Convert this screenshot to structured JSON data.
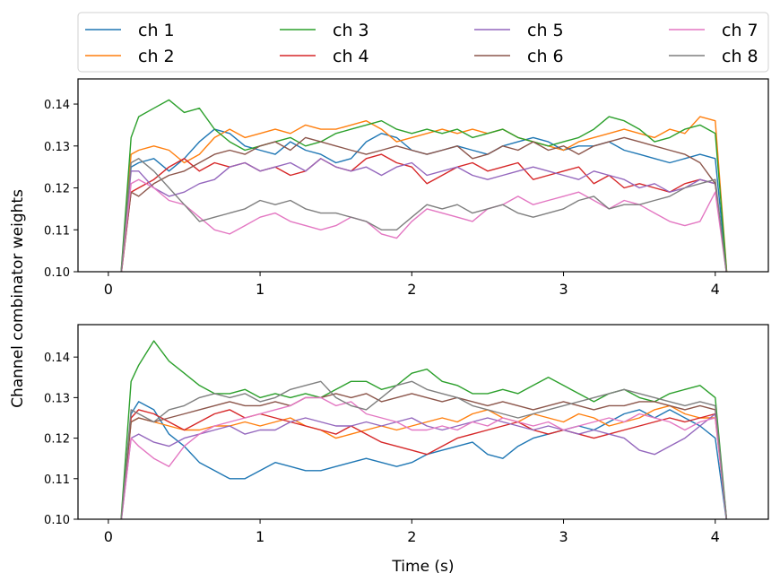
{
  "chart_data": {
    "type": "line",
    "ylabel": "Channel combinator weights",
    "xlabel": "Time (s)",
    "legend": {
      "placement": "top",
      "columns": 4,
      "entries": [
        "ch 1",
        "ch 2",
        "ch 3",
        "ch 4",
        "ch 5",
        "ch 6",
        "ch 7",
        "ch 8"
      ]
    },
    "colors": [
      "#1f77b4",
      "#ff7f0e",
      "#2ca02c",
      "#d62728",
      "#9467bd",
      "#8c564b",
      "#e377c2",
      "#7f7f7f"
    ],
    "panels": [
      {
        "xlim": [
          -0.2,
          4.35
        ],
        "ylim": [
          0.1,
          0.146
        ],
        "xticks": [
          0,
          1,
          2,
          3,
          4
        ],
        "xtick_labels": [
          "0",
          "1",
          "2",
          "3",
          "4"
        ],
        "yticks": [
          0.1,
          0.11,
          0.12,
          0.13,
          0.14
        ],
        "ytick_labels": [
          "0.10",
          "0.11",
          "0.12",
          "0.13",
          "0.14"
        ],
        "x": [
          0.08,
          0.15,
          0.2,
          0.3,
          0.4,
          0.5,
          0.6,
          0.7,
          0.8,
          0.9,
          1.0,
          1.1,
          1.2,
          1.3,
          1.4,
          1.5,
          1.6,
          1.7,
          1.8,
          1.9,
          2.0,
          2.1,
          2.2,
          2.3,
          2.4,
          2.5,
          2.6,
          2.7,
          2.8,
          2.9,
          3.0,
          3.1,
          3.2,
          3.3,
          3.4,
          3.5,
          3.6,
          3.7,
          3.8,
          3.9,
          4.0,
          4.08
        ],
        "series": [
          {
            "name": "ch 1",
            "values": [
              0.098,
              0.125,
              0.126,
              0.127,
              0.124,
              0.127,
              0.131,
              0.134,
              0.133,
              0.13,
              0.129,
              0.128,
              0.131,
              0.129,
              0.128,
              0.126,
              0.127,
              0.131,
              0.133,
              0.132,
              0.129,
              0.128,
              0.129,
              0.13,
              0.129,
              0.128,
              0.13,
              0.131,
              0.132,
              0.131,
              0.129,
              0.13,
              0.13,
              0.131,
              0.129,
              0.128,
              0.127,
              0.126,
              0.127,
              0.128,
              0.127,
              0.098
            ]
          },
          {
            "name": "ch 2",
            "values": [
              0.098,
              0.128,
              0.129,
              0.13,
              0.129,
              0.126,
              0.128,
              0.132,
              0.134,
              0.132,
              0.133,
              0.134,
              0.133,
              0.135,
              0.134,
              0.134,
              0.135,
              0.136,
              0.134,
              0.131,
              0.132,
              0.133,
              0.134,
              0.133,
              0.134,
              0.133,
              0.134,
              0.132,
              0.131,
              0.13,
              0.129,
              0.131,
              0.132,
              0.133,
              0.134,
              0.133,
              0.132,
              0.134,
              0.133,
              0.137,
              0.136,
              0.098
            ]
          },
          {
            "name": "ch 3",
            "values": [
              0.098,
              0.132,
              0.137,
              0.139,
              0.141,
              0.138,
              0.139,
              0.134,
              0.131,
              0.129,
              0.13,
              0.131,
              0.132,
              0.13,
              0.131,
              0.133,
              0.134,
              0.135,
              0.136,
              0.134,
              0.133,
              0.134,
              0.133,
              0.134,
              0.132,
              0.133,
              0.134,
              0.132,
              0.131,
              0.13,
              0.131,
              0.132,
              0.134,
              0.137,
              0.136,
              0.134,
              0.131,
              0.132,
              0.134,
              0.135,
              0.133,
              0.098
            ]
          },
          {
            "name": "ch 4",
            "values": [
              0.098,
              0.119,
              0.12,
              0.122,
              0.125,
              0.127,
              0.124,
              0.126,
              0.125,
              0.126,
              0.124,
              0.125,
              0.123,
              0.124,
              0.127,
              0.125,
              0.124,
              0.127,
              0.128,
              0.126,
              0.125,
              0.121,
              0.123,
              0.125,
              0.126,
              0.124,
              0.125,
              0.126,
              0.122,
              0.123,
              0.124,
              0.125,
              0.121,
              0.123,
              0.12,
              0.121,
              0.12,
              0.119,
              0.121,
              0.122,
              0.121,
              0.098
            ]
          },
          {
            "name": "ch 5",
            "values": [
              0.098,
              0.124,
              0.124,
              0.12,
              0.118,
              0.119,
              0.121,
              0.122,
              0.125,
              0.126,
              0.124,
              0.125,
              0.126,
              0.124,
              0.127,
              0.125,
              0.124,
              0.125,
              0.123,
              0.125,
              0.126,
              0.123,
              0.124,
              0.125,
              0.123,
              0.122,
              0.123,
              0.124,
              0.125,
              0.124,
              0.123,
              0.122,
              0.124,
              0.123,
              0.122,
              0.12,
              0.121,
              0.119,
              0.12,
              0.122,
              0.121,
              0.098
            ]
          },
          {
            "name": "ch 6",
            "values": [
              0.098,
              0.119,
              0.118,
              0.121,
              0.123,
              0.124,
              0.126,
              0.128,
              0.129,
              0.128,
              0.13,
              0.131,
              0.129,
              0.132,
              0.131,
              0.13,
              0.129,
              0.128,
              0.129,
              0.13,
              0.129,
              0.128,
              0.129,
              0.13,
              0.127,
              0.128,
              0.13,
              0.129,
              0.131,
              0.129,
              0.13,
              0.128,
              0.13,
              0.131,
              0.132,
              0.131,
              0.13,
              0.129,
              0.128,
              0.126,
              0.121,
              0.098
            ]
          },
          {
            "name": "ch 7",
            "values": [
              0.098,
              0.121,
              0.122,
              0.12,
              0.117,
              0.116,
              0.113,
              0.11,
              0.109,
              0.111,
              0.113,
              0.114,
              0.112,
              0.111,
              0.11,
              0.111,
              0.113,
              0.112,
              0.109,
              0.108,
              0.112,
              0.115,
              0.114,
              0.113,
              0.112,
              0.115,
              0.116,
              0.118,
              0.116,
              0.117,
              0.118,
              0.119,
              0.117,
              0.115,
              0.117,
              0.116,
              0.114,
              0.112,
              0.111,
              0.112,
              0.119,
              0.098
            ]
          },
          {
            "name": "ch 8",
            "values": [
              0.098,
              0.126,
              0.127,
              0.124,
              0.12,
              0.116,
              0.112,
              0.113,
              0.114,
              0.115,
              0.117,
              0.116,
              0.117,
              0.115,
              0.114,
              0.114,
              0.113,
              0.112,
              0.11,
              0.11,
              0.113,
              0.116,
              0.115,
              0.116,
              0.114,
              0.115,
              0.116,
              0.114,
              0.113,
              0.114,
              0.115,
              0.117,
              0.118,
              0.115,
              0.116,
              0.116,
              0.117,
              0.118,
              0.12,
              0.121,
              0.122,
              0.098
            ]
          }
        ]
      },
      {
        "xlim": [
          -0.2,
          4.35
        ],
        "ylim": [
          0.1,
          0.148
        ],
        "xticks": [
          0,
          1,
          2,
          3,
          4
        ],
        "xtick_labels": [
          "0",
          "1",
          "2",
          "3",
          "4"
        ],
        "yticks": [
          0.1,
          0.11,
          0.12,
          0.13,
          0.14
        ],
        "ytick_labels": [
          "0.10",
          "0.11",
          "0.12",
          "0.13",
          "0.14"
        ],
        "x": [
          0.08,
          0.15,
          0.2,
          0.3,
          0.4,
          0.5,
          0.6,
          0.7,
          0.8,
          0.9,
          1.0,
          1.1,
          1.2,
          1.3,
          1.4,
          1.5,
          1.6,
          1.7,
          1.8,
          1.9,
          2.0,
          2.1,
          2.2,
          2.3,
          2.4,
          2.5,
          2.6,
          2.7,
          2.8,
          2.9,
          3.0,
          3.1,
          3.2,
          3.3,
          3.4,
          3.5,
          3.6,
          3.7,
          3.8,
          3.9,
          4.0,
          4.08
        ],
        "series": [
          {
            "name": "ch 1",
            "values": [
              0.098,
              0.126,
              0.129,
              0.127,
              0.121,
              0.118,
              0.114,
              0.112,
              0.11,
              0.11,
              0.112,
              0.114,
              0.113,
              0.112,
              0.112,
              0.113,
              0.114,
              0.115,
              0.114,
              0.113,
              0.114,
              0.116,
              0.117,
              0.118,
              0.119,
              0.116,
              0.115,
              0.118,
              0.12,
              0.121,
              0.122,
              0.123,
              0.122,
              0.124,
              0.126,
              0.127,
              0.125,
              0.127,
              0.125,
              0.123,
              0.12,
              0.098
            ]
          },
          {
            "name": "ch 2",
            "values": [
              0.098,
              0.124,
              0.125,
              0.124,
              0.123,
              0.122,
              0.122,
              0.123,
              0.123,
              0.124,
              0.123,
              0.124,
              0.125,
              0.123,
              0.122,
              0.12,
              0.121,
              0.122,
              0.123,
              0.122,
              0.123,
              0.124,
              0.125,
              0.124,
              0.126,
              0.127,
              0.125,
              0.124,
              0.126,
              0.125,
              0.124,
              0.126,
              0.125,
              0.123,
              0.124,
              0.125,
              0.127,
              0.128,
              0.126,
              0.125,
              0.125,
              0.098
            ]
          },
          {
            "name": "ch 3",
            "values": [
              0.098,
              0.134,
              0.138,
              0.144,
              0.139,
              0.136,
              0.133,
              0.131,
              0.131,
              0.132,
              0.13,
              0.131,
              0.13,
              0.131,
              0.13,
              0.132,
              0.134,
              0.134,
              0.132,
              0.133,
              0.136,
              0.137,
              0.134,
              0.133,
              0.131,
              0.131,
              0.132,
              0.131,
              0.133,
              0.135,
              0.133,
              0.131,
              0.129,
              0.131,
              0.132,
              0.13,
              0.129,
              0.131,
              0.132,
              0.133,
              0.13,
              0.098
            ]
          },
          {
            "name": "ch 4",
            "values": [
              0.098,
              0.125,
              0.127,
              0.126,
              0.124,
              0.122,
              0.124,
              0.126,
              0.127,
              0.125,
              0.126,
              0.125,
              0.124,
              0.123,
              0.122,
              0.121,
              0.123,
              0.121,
              0.119,
              0.118,
              0.117,
              0.116,
              0.118,
              0.12,
              0.121,
              0.122,
              0.123,
              0.124,
              0.122,
              0.121,
              0.122,
              0.121,
              0.12,
              0.121,
              0.122,
              0.123,
              0.124,
              0.125,
              0.124,
              0.125,
              0.126,
              0.098
            ]
          },
          {
            "name": "ch 5",
            "values": [
              0.098,
              0.12,
              0.121,
              0.119,
              0.118,
              0.12,
              0.121,
              0.122,
              0.123,
              0.121,
              0.122,
              0.122,
              0.124,
              0.125,
              0.124,
              0.123,
              0.123,
              0.124,
              0.123,
              0.124,
              0.125,
              0.123,
              0.122,
              0.123,
              0.124,
              0.125,
              0.124,
              0.123,
              0.122,
              0.123,
              0.122,
              0.121,
              0.122,
              0.121,
              0.12,
              0.117,
              0.116,
              0.118,
              0.12,
              0.123,
              0.126,
              0.098
            ]
          },
          {
            "name": "ch 6",
            "values": [
              0.098,
              0.124,
              0.125,
              0.124,
              0.125,
              0.126,
              0.127,
              0.128,
              0.129,
              0.128,
              0.128,
              0.129,
              0.128,
              0.13,
              0.13,
              0.131,
              0.13,
              0.131,
              0.129,
              0.13,
              0.131,
              0.13,
              0.129,
              0.13,
              0.129,
              0.128,
              0.129,
              0.128,
              0.127,
              0.128,
              0.129,
              0.128,
              0.127,
              0.128,
              0.128,
              0.129,
              0.129,
              0.128,
              0.127,
              0.128,
              0.127,
              0.098
            ]
          },
          {
            "name": "ch 7",
            "values": [
              0.098,
              0.12,
              0.118,
              0.115,
              0.113,
              0.118,
              0.121,
              0.123,
              0.124,
              0.125,
              0.126,
              0.127,
              0.128,
              0.13,
              0.13,
              0.128,
              0.129,
              0.126,
              0.125,
              0.124,
              0.122,
              0.122,
              0.123,
              0.122,
              0.124,
              0.123,
              0.125,
              0.124,
              0.123,
              0.124,
              0.122,
              0.123,
              0.124,
              0.125,
              0.124,
              0.126,
              0.125,
              0.124,
              0.122,
              0.124,
              0.125,
              0.098
            ]
          },
          {
            "name": "ch 8",
            "values": [
              0.098,
              0.127,
              0.126,
              0.124,
              0.127,
              0.128,
              0.13,
              0.131,
              0.13,
              0.131,
              0.129,
              0.13,
              0.132,
              0.133,
              0.134,
              0.13,
              0.128,
              0.127,
              0.13,
              0.133,
              0.134,
              0.132,
              0.131,
              0.13,
              0.128,
              0.127,
              0.126,
              0.125,
              0.126,
              0.127,
              0.128,
              0.129,
              0.13,
              0.131,
              0.132,
              0.131,
              0.13,
              0.129,
              0.128,
              0.129,
              0.128,
              0.098
            ]
          }
        ]
      }
    ]
  }
}
